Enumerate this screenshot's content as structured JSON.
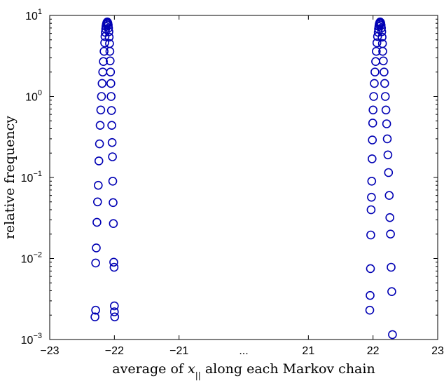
{
  "chart_data": {
    "type": "scatter",
    "title": "",
    "xlabel": {
      "prefix": "average of ",
      "var": "x",
      "sub": "||",
      "suffix": " along each Markov chain"
    },
    "ylabel": "relative frequency",
    "yscale": "log",
    "ylim": [
      0.001,
      10
    ],
    "x_ticks": [
      "−23",
      "−22",
      "−21",
      "...",
      "21",
      "22",
      "23"
    ],
    "y_ticks": [
      {
        "base": "10",
        "exp": "1"
      },
      {
        "base": "10",
        "exp": "0"
      },
      {
        "base": "10",
        "exp": "−1"
      },
      {
        "base": "10",
        "exp": "−2"
      },
      {
        "base": "10",
        "exp": "−3"
      }
    ],
    "grid": false,
    "marker_color": "#0000b4",
    "series": [
      {
        "points": [
          [
            -22.3,
            0.0019
          ],
          [
            -22.29,
            0.0023
          ],
          [
            -22.29,
            0.0088
          ],
          [
            -22.28,
            0.0135
          ],
          [
            -22.27,
            0.028
          ],
          [
            -22.26,
            0.05
          ],
          [
            -22.25,
            0.08
          ],
          [
            -22.24,
            0.16
          ],
          [
            -22.23,
            0.26
          ],
          [
            -22.22,
            0.44
          ],
          [
            -22.21,
            0.68
          ],
          [
            -22.2,
            1.0
          ],
          [
            -22.19,
            1.45
          ],
          [
            -22.18,
            2.0
          ],
          [
            -22.17,
            2.7
          ],
          [
            -22.16,
            3.6
          ],
          [
            -22.15,
            4.6
          ],
          [
            -22.145,
            5.5
          ],
          [
            -22.14,
            6.2
          ],
          [
            -22.135,
            6.8
          ],
          [
            -22.13,
            7.3
          ],
          [
            -22.125,
            7.7
          ],
          [
            -22.12,
            8.0
          ],
          [
            -22.115,
            8.2
          ],
          [
            -22.11,
            8.3
          ],
          [
            -22.105,
            8.2
          ],
          [
            -22.1,
            8.0
          ],
          [
            -22.095,
            7.6
          ],
          [
            -22.09,
            7.0
          ],
          [
            -22.085,
            6.3
          ],
          [
            -22.08,
            5.4
          ],
          [
            -22.075,
            4.5
          ],
          [
            -22.07,
            3.6
          ],
          [
            -22.065,
            2.75
          ],
          [
            -22.06,
            2.0
          ],
          [
            -22.055,
            1.45
          ],
          [
            -22.05,
            1.0
          ],
          [
            -22.045,
            0.67
          ],
          [
            -22.04,
            0.44
          ],
          [
            -22.035,
            0.27
          ],
          [
            -22.03,
            0.18
          ],
          [
            -22.025,
            0.09
          ],
          [
            -22.02,
            0.049
          ],
          [
            -22.015,
            0.027
          ],
          [
            -22.01,
            0.009
          ],
          [
            -22.005,
            0.0078
          ],
          [
            -22.0,
            0.0026
          ],
          [
            -22.0,
            0.0022
          ],
          [
            -21.995,
            0.0019
          ]
        ]
      },
      {
        "points": [
          [
            21.95,
            0.0023
          ],
          [
            21.955,
            0.0035
          ],
          [
            21.96,
            0.0075
          ],
          [
            21.965,
            0.0195
          ],
          [
            21.97,
            0.04
          ],
          [
            21.975,
            0.057
          ],
          [
            21.98,
            0.09
          ],
          [
            21.985,
            0.17
          ],
          [
            21.99,
            0.29
          ],
          [
            21.995,
            0.47
          ],
          [
            22.0,
            0.68
          ],
          [
            22.01,
            1.0
          ],
          [
            22.02,
            1.45
          ],
          [
            22.03,
            2.0
          ],
          [
            22.04,
            2.7
          ],
          [
            22.05,
            3.6
          ],
          [
            22.06,
            4.6
          ],
          [
            22.07,
            5.5
          ],
          [
            22.08,
            6.2
          ],
          [
            22.085,
            6.8
          ],
          [
            22.09,
            7.3
          ],
          [
            22.095,
            7.7
          ],
          [
            22.1,
            8.0
          ],
          [
            22.105,
            8.2
          ],
          [
            22.11,
            8.3
          ],
          [
            22.115,
            8.2
          ],
          [
            22.12,
            8.0
          ],
          [
            22.125,
            7.6
          ],
          [
            22.13,
            7.0
          ],
          [
            22.135,
            6.3
          ],
          [
            22.14,
            5.4
          ],
          [
            22.145,
            4.5
          ],
          [
            22.15,
            3.6
          ],
          [
            22.16,
            2.75
          ],
          [
            22.17,
            2.0
          ],
          [
            22.18,
            1.45
          ],
          [
            22.19,
            1.0
          ],
          [
            22.2,
            0.68
          ],
          [
            22.21,
            0.46
          ],
          [
            22.22,
            0.3
          ],
          [
            22.23,
            0.19
          ],
          [
            22.24,
            0.115
          ],
          [
            22.25,
            0.06
          ],
          [
            22.26,
            0.032
          ],
          [
            22.27,
            0.02
          ],
          [
            22.28,
            0.0078
          ],
          [
            22.29,
            0.0039
          ],
          [
            22.3,
            0.00115
          ]
        ]
      }
    ]
  }
}
